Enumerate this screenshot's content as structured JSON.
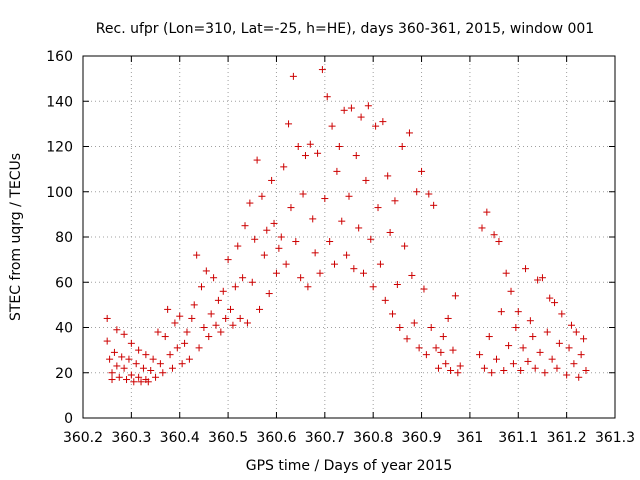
{
  "chart_data": {
    "type": "scatter",
    "title": "Rec. ufpr (Lon=310, Lat=-25, h=HE), days 360-361, 2015, window 001",
    "xlabel": "GPS time / Days of year 2015",
    "ylabel": "STEC from uqrg / TECUs",
    "xlim": [
      360.2,
      361.3
    ],
    "ylim": [
      0,
      160
    ],
    "xticks": [
      "360.2",
      "360.3",
      "360.4",
      "360.5",
      "360.6",
      "360.7",
      "360.8",
      "360.9",
      "361",
      "361.1",
      "361.2",
      "361.3"
    ],
    "yticks": [
      "0",
      "20",
      "40",
      "60",
      "80",
      "100",
      "120",
      "140",
      "160"
    ],
    "grid": true,
    "marker": "plus",
    "color": "#cc0000",
    "points": [
      [
        360.25,
        44
      ],
      [
        360.25,
        34
      ],
      [
        360.255,
        26
      ],
      [
        360.26,
        20
      ],
      [
        360.26,
        17
      ],
      [
        360.265,
        29
      ],
      [
        360.27,
        39
      ],
      [
        360.27,
        23
      ],
      [
        360.275,
        18
      ],
      [
        360.28,
        27
      ],
      [
        360.285,
        37
      ],
      [
        360.285,
        22
      ],
      [
        360.29,
        17
      ],
      [
        360.295,
        26
      ],
      [
        360.3,
        33
      ],
      [
        360.3,
        19
      ],
      [
        360.305,
        16
      ],
      [
        360.31,
        24
      ],
      [
        360.315,
        30
      ],
      [
        360.315,
        18
      ],
      [
        360.32,
        16
      ],
      [
        360.325,
        22
      ],
      [
        360.33,
        28
      ],
      [
        360.33,
        17
      ],
      [
        360.335,
        16
      ],
      [
        360.34,
        21
      ],
      [
        360.345,
        26
      ],
      [
        360.35,
        18
      ],
      [
        360.355,
        38
      ],
      [
        360.36,
        24
      ],
      [
        360.365,
        20
      ],
      [
        360.37,
        36
      ],
      [
        360.375,
        48
      ],
      [
        360.38,
        28
      ],
      [
        360.385,
        22
      ],
      [
        360.39,
        42
      ],
      [
        360.395,
        31
      ],
      [
        360.4,
        45
      ],
      [
        360.405,
        24
      ],
      [
        360.41,
        33
      ],
      [
        360.415,
        38
      ],
      [
        360.42,
        26
      ],
      [
        360.425,
        44
      ],
      [
        360.43,
        50
      ],
      [
        360.435,
        72
      ],
      [
        360.44,
        31
      ],
      [
        360.445,
        58
      ],
      [
        360.45,
        40
      ],
      [
        360.455,
        65
      ],
      [
        360.46,
        36
      ],
      [
        360.465,
        46
      ],
      [
        360.47,
        62
      ],
      [
        360.475,
        41
      ],
      [
        360.48,
        52
      ],
      [
        360.485,
        38
      ],
      [
        360.49,
        56
      ],
      [
        360.495,
        44
      ],
      [
        360.5,
        70
      ],
      [
        360.505,
        48
      ],
      [
        360.51,
        41
      ],
      [
        360.515,
        58
      ],
      [
        360.52,
        76
      ],
      [
        360.525,
        44
      ],
      [
        360.53,
        62
      ],
      [
        360.535,
        85
      ],
      [
        360.54,
        42
      ],
      [
        360.545,
        95
      ],
      [
        360.55,
        60
      ],
      [
        360.555,
        79
      ],
      [
        360.56,
        114
      ],
      [
        360.565,
        48
      ],
      [
        360.57,
        98
      ],
      [
        360.575,
        72
      ],
      [
        360.58,
        83
      ],
      [
        360.585,
        55
      ],
      [
        360.59,
        105
      ],
      [
        360.595,
        86
      ],
      [
        360.6,
        64
      ],
      [
        360.605,
        75
      ],
      [
        360.61,
        80
      ],
      [
        360.615,
        111
      ],
      [
        360.62,
        68
      ],
      [
        360.625,
        130
      ],
      [
        360.63,
        93
      ],
      [
        360.635,
        151
      ],
      [
        360.64,
        78
      ],
      [
        360.645,
        120
      ],
      [
        360.65,
        62
      ],
      [
        360.655,
        99
      ],
      [
        360.66,
        116
      ],
      [
        360.665,
        58
      ],
      [
        360.67,
        121
      ],
      [
        360.675,
        88
      ],
      [
        360.68,
        73
      ],
      [
        360.685,
        117
      ],
      [
        360.69,
        64
      ],
      [
        360.695,
        154
      ],
      [
        360.7,
        97
      ],
      [
        360.705,
        142
      ],
      [
        360.71,
        78
      ],
      [
        360.715,
        129
      ],
      [
        360.72,
        68
      ],
      [
        360.725,
        109
      ],
      [
        360.73,
        120
      ],
      [
        360.735,
        87
      ],
      [
        360.74,
        136
      ],
      [
        360.745,
        72
      ],
      [
        360.75,
        98
      ],
      [
        360.755,
        137
      ],
      [
        360.76,
        66
      ],
      [
        360.765,
        116
      ],
      [
        360.77,
        84
      ],
      [
        360.775,
        133
      ],
      [
        360.78,
        64
      ],
      [
        360.785,
        105
      ],
      [
        360.79,
        138
      ],
      [
        360.795,
        79
      ],
      [
        360.8,
        58
      ],
      [
        360.805,
        129
      ],
      [
        360.81,
        93
      ],
      [
        360.815,
        68
      ],
      [
        360.82,
        131
      ],
      [
        360.825,
        52
      ],
      [
        360.83,
        107
      ],
      [
        360.835,
        82
      ],
      [
        360.84,
        46
      ],
      [
        360.845,
        96
      ],
      [
        360.85,
        59
      ],
      [
        360.855,
        40
      ],
      [
        360.86,
        120
      ],
      [
        360.865,
        76
      ],
      [
        360.87,
        35
      ],
      [
        360.875,
        126
      ],
      [
        360.88,
        63
      ],
      [
        360.885,
        42
      ],
      [
        360.89,
        100
      ],
      [
        360.895,
        31
      ],
      [
        360.9,
        109
      ],
      [
        360.905,
        57
      ],
      [
        360.91,
        28
      ],
      [
        360.915,
        99
      ],
      [
        360.92,
        40
      ],
      [
        360.925,
        94
      ],
      [
        360.93,
        31
      ],
      [
        360.935,
        22
      ],
      [
        360.94,
        29
      ],
      [
        360.945,
        36
      ],
      [
        360.95,
        24
      ],
      [
        360.955,
        44
      ],
      [
        360.96,
        21
      ],
      [
        360.965,
        30
      ],
      [
        360.97,
        54
      ],
      [
        360.975,
        20
      ],
      [
        360.98,
        23
      ],
      [
        361.02,
        28
      ],
      [
        361.025,
        84
      ],
      [
        361.03,
        22
      ],
      [
        361.035,
        91
      ],
      [
        361.04,
        36
      ],
      [
        361.045,
        20
      ],
      [
        361.05,
        81
      ],
      [
        361.055,
        26
      ],
      [
        361.06,
        78
      ],
      [
        361.065,
        47
      ],
      [
        361.07,
        21
      ],
      [
        361.075,
        64
      ],
      [
        361.08,
        32
      ],
      [
        361.085,
        56
      ],
      [
        361.09,
        24
      ],
      [
        361.095,
        40
      ],
      [
        361.1,
        47
      ],
      [
        361.105,
        21
      ],
      [
        361.11,
        31
      ],
      [
        361.115,
        66
      ],
      [
        361.12,
        25
      ],
      [
        361.125,
        43
      ],
      [
        361.13,
        36
      ],
      [
        361.135,
        22
      ],
      [
        361.14,
        61
      ],
      [
        361.145,
        29
      ],
      [
        361.15,
        62
      ],
      [
        361.155,
        20
      ],
      [
        361.16,
        38
      ],
      [
        361.165,
        53
      ],
      [
        361.17,
        26
      ],
      [
        361.175,
        51
      ],
      [
        361.18,
        22
      ],
      [
        361.185,
        33
      ],
      [
        361.19,
        46
      ],
      [
        361.2,
        19
      ],
      [
        361.205,
        31
      ],
      [
        361.21,
        41
      ],
      [
        361.215,
        24
      ],
      [
        361.22,
        38
      ],
      [
        361.225,
        18
      ],
      [
        361.23,
        28
      ],
      [
        361.235,
        35
      ],
      [
        361.24,
        21
      ]
    ]
  }
}
